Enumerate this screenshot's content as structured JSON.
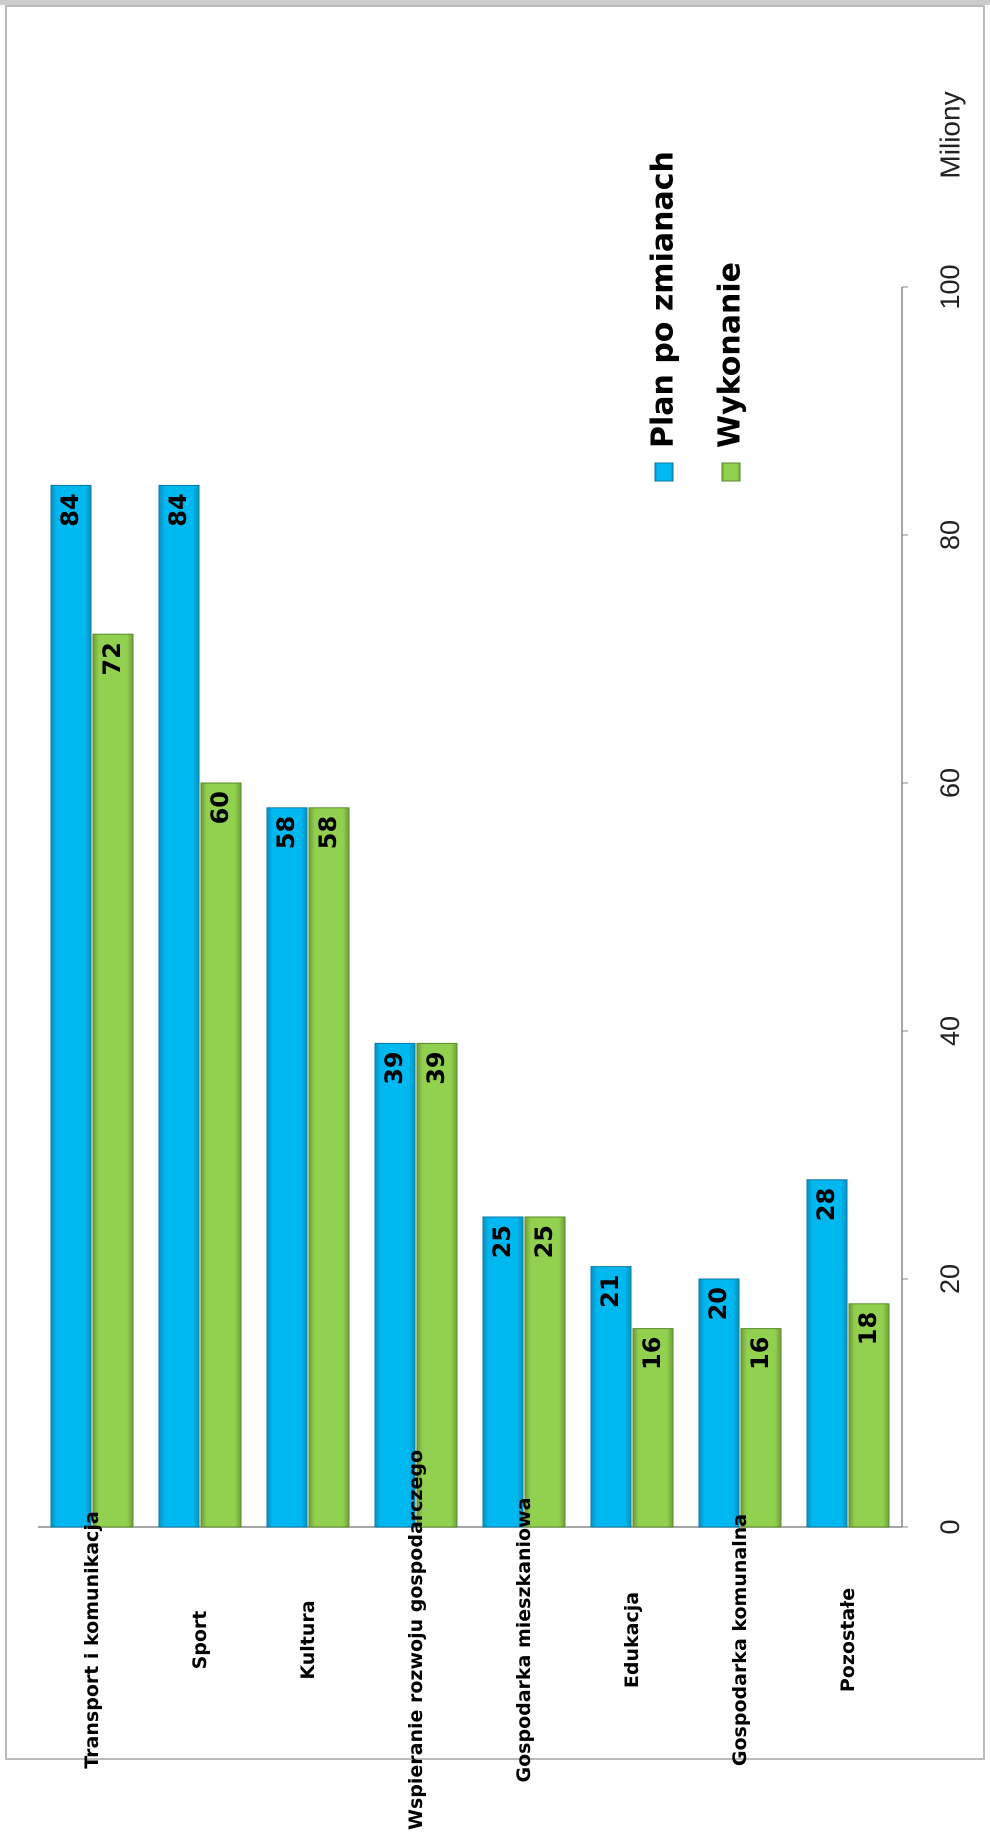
{
  "chart_data": {
    "type": "bar",
    "orientation": "rotated",
    "categories": [
      "Transport i komunikacja",
      "Sport",
      "Kultura",
      "Wspieranie rozwoju gospodarczego",
      "Gospodarka mieszkaniowa",
      "Edukacja",
      "Gospodarka komunalna",
      "Pozostałe"
    ],
    "series": [
      {
        "name": "Plan po zmianach",
        "color": "#00b8f0",
        "values": [
          84,
          84,
          58,
          39,
          25,
          21,
          20,
          28
        ]
      },
      {
        "name": "Wykonanie",
        "color": "#92d050",
        "values": [
          72,
          60,
          58,
          39,
          25,
          16,
          16,
          18
        ]
      }
    ],
    "y_label": "Miliony",
    "ylim": [
      0,
      100
    ],
    "yticks": [
      0,
      20,
      40,
      60,
      80,
      100
    ],
    "grid": false
  }
}
